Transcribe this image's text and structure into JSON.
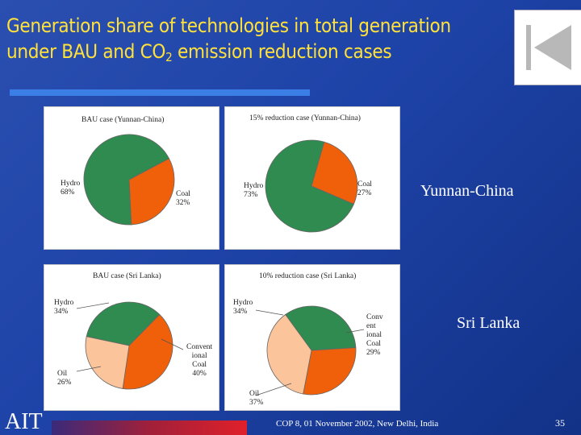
{
  "slide": {
    "title_line1": "Generation share of technologies in total generation",
    "title_line2_pre": "under BAU and CO",
    "title_line2_sub": "2",
    "title_line2_post": " emission reduction cases",
    "label_yunnan": "Yunnan-China",
    "label_srilanka": "Sri Lanka",
    "footer_left": "AIT",
    "footer_center": "COP 8, 01 November 2002, New Delhi, India",
    "page_number": "35",
    "back_button_icon": "back-to-start-icon"
  },
  "colors": {
    "hydro": "#2f8b4f",
    "coal": "#f0600a",
    "oil": "#fbc49b",
    "title": "#ffe13a"
  },
  "chart_data": [
    {
      "type": "pie",
      "title": "BAU case (Yunnan-China)",
      "slices": [
        {
          "name": "Hydro",
          "value": 68,
          "label": "68%"
        },
        {
          "name": "Coal",
          "value": 32,
          "label": "32%"
        }
      ]
    },
    {
      "type": "pie",
      "title": "15% reduction case (Yunnan-China)",
      "slices": [
        {
          "name": "Hydro",
          "value": 73,
          "label": "73%"
        },
        {
          "name": "Coal",
          "value": 27,
          "label": "27%"
        }
      ]
    },
    {
      "type": "pie",
      "title": "BAU case (Sri Lanka)",
      "slices": [
        {
          "name": "Hydro",
          "value": 34,
          "label": "34%"
        },
        {
          "name": "Conventional Coal",
          "value": 40,
          "label": "40%"
        },
        {
          "name": "Oil",
          "value": 26,
          "label": "26%"
        }
      ]
    },
    {
      "type": "pie",
      "title": "10% reduction case (Sri Lanka)",
      "slices": [
        {
          "name": "Hydro",
          "value": 34,
          "label": "34%"
        },
        {
          "name": "Conventional Coal",
          "value": 29,
          "label": "29%"
        },
        {
          "name": "Oil",
          "value": 37,
          "label": "37%"
        }
      ]
    }
  ],
  "labels": {
    "hydro": "Hydro",
    "coal": "Coal",
    "oil": "Oil",
    "conv1": "Convent",
    "conv2": "ional",
    "conv3": "Coal",
    "conv1b": "Conv",
    "conv2b": "ent",
    "conv3b": "ional",
    "conv4b": "Coal"
  }
}
